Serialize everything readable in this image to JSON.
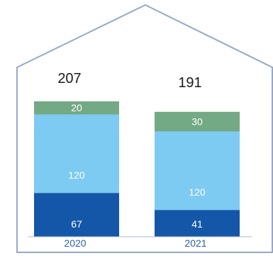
{
  "chart_data": {
    "type": "bar",
    "stacked": true,
    "categories": [
      "2020",
      "2021"
    ],
    "series": [
      {
        "values": [
          67,
          41
        ],
        "color": "#1457A8",
        "label_color": "#ffffff"
      },
      {
        "values": [
          120,
          120
        ],
        "color": "#7DCAF2",
        "label_color": "#ffffff"
      },
      {
        "values": [
          20,
          30
        ],
        "color": "#74A985",
        "label_color": "#ffffff"
      }
    ],
    "totals": [
      "207",
      "191"
    ],
    "value_labels": [
      [
        "67",
        "41"
      ],
      [
        "120",
        "120"
      ],
      [
        "20",
        "30"
      ]
    ],
    "ylim": [
      0,
      207
    ],
    "grid": false,
    "legend": "none",
    "colors": {
      "house_outline": "#95A8C9",
      "tick_label": "#2C61A6",
      "total_label": "#1A1A1A",
      "axis_line": "#AEB9CC"
    }
  }
}
